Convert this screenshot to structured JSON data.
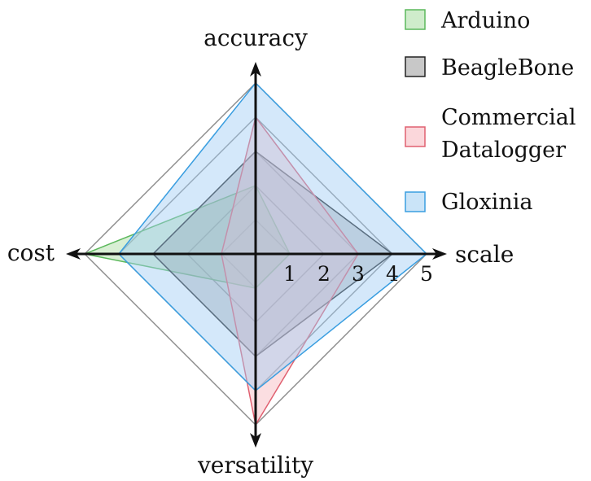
{
  "chart_data": {
    "type": "radar",
    "axes": [
      "accuracy",
      "scale",
      "versatility",
      "cost"
    ],
    "range": [
      0,
      5
    ],
    "ticks": [
      "1",
      "2",
      "3",
      "4",
      "5"
    ],
    "grid": true,
    "legend_position": "top-right",
    "series": [
      {
        "name": "Arduino",
        "values": [
          2,
          1,
          1,
          5
        ],
        "stroke": "#5cb85c",
        "fill": "#a8dca0"
      },
      {
        "name": "BeagleBone",
        "values": [
          3,
          4,
          3,
          3
        ],
        "stroke": "#222222",
        "fill": "#9a9a9a"
      },
      {
        "name": "Commercial Datalogger",
        "name_lines": [
          "Commercial",
          "Datalogger"
        ],
        "values": [
          4,
          3,
          5,
          1
        ],
        "stroke": "#e06070",
        "fill": "#f7b6bd"
      },
      {
        "name": "Gloxinia",
        "values": [
          5,
          5,
          4,
          4
        ],
        "stroke": "#3a9ee0",
        "fill": "#9fcdf3"
      }
    ]
  }
}
